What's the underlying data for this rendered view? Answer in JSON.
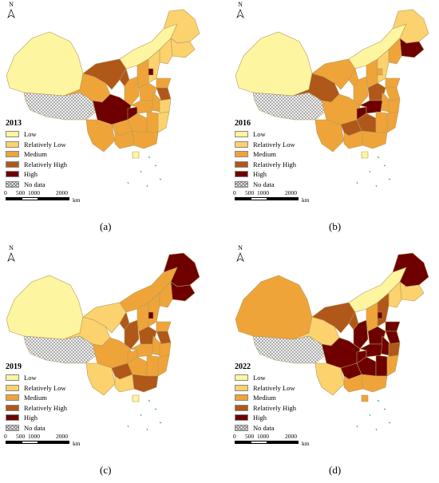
{
  "panels": [
    {
      "year": "2013",
      "caption": "(a)"
    },
    {
      "year": "2016",
      "caption": "(b)"
    },
    {
      "year": "2019",
      "caption": "(c)"
    },
    {
      "year": "2022",
      "caption": "(d)"
    }
  ],
  "north_label": "N",
  "legend": {
    "low": "Low",
    "relatively_low": "Relatively Low",
    "medium": "Medium",
    "relatively_high": "Relatively High",
    "high": "High",
    "no_data": "No data"
  },
  "colors": {
    "low": "#fdf5a0",
    "relatively_low": "#fbd26e",
    "medium": "#efa43a",
    "relatively_high": "#b0571a",
    "high": "#6e0000"
  },
  "scale": {
    "t0": "0",
    "t1": "500",
    "t2": "1000",
    "t3": "2000",
    "unit": "km"
  }
}
